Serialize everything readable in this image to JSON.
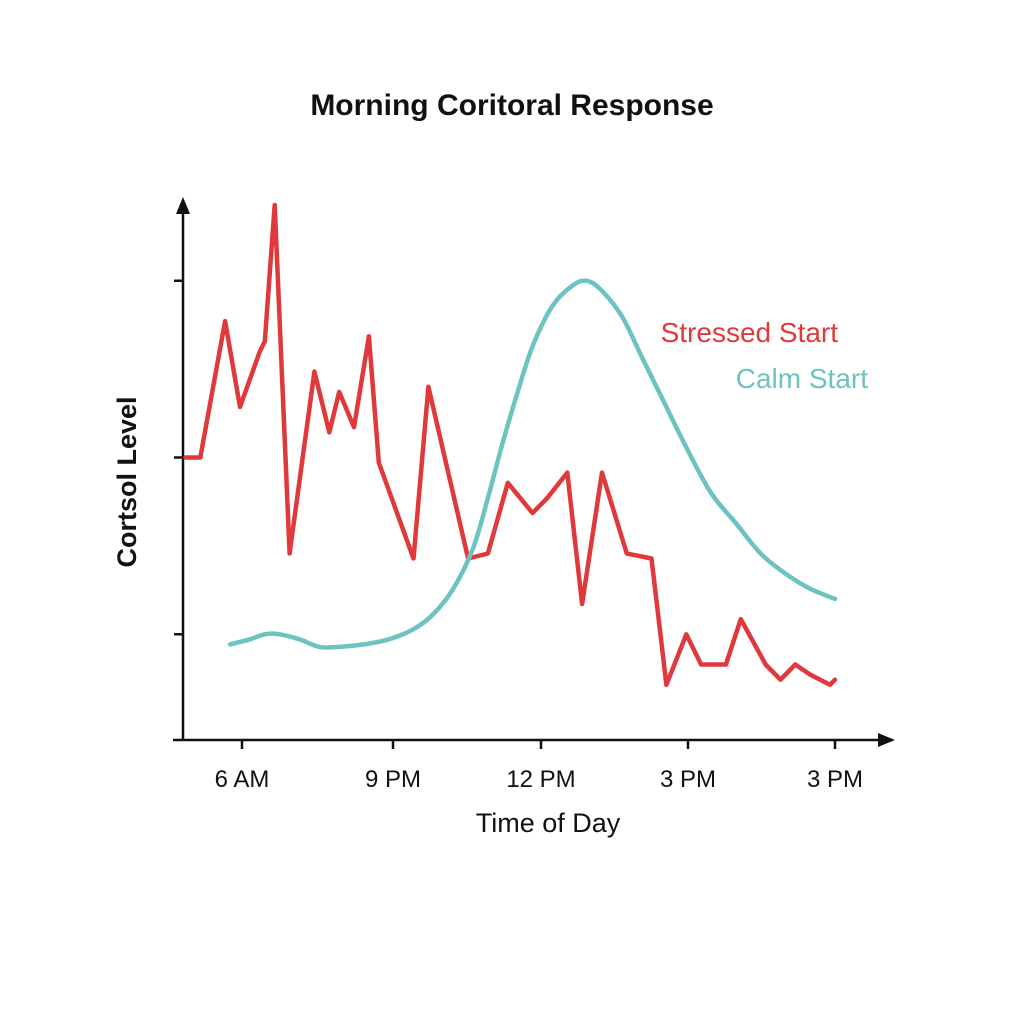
{
  "chart_data": {
    "type": "line",
    "title": "Morning Coritoral Response",
    "xlabel": "Time of Day",
    "ylabel": "Cortsol Level",
    "x_tick_labels": [
      "6 AM",
      "9 PM",
      "12 PM",
      "3 PM",
      "3 PM"
    ],
    "xlim": [
      5,
      18
    ],
    "ylim": [
      0,
      100
    ],
    "y_tick_values": [
      15,
      50,
      85
    ],
    "grid": false,
    "legend_placement": "top-right (inline labels)",
    "series": [
      {
        "name": "Stressed Start",
        "color": "#e0393b",
        "x": [
          4.9,
          5.2,
          5.7,
          6.0,
          6.4,
          6.5,
          6.7,
          7.0,
          7.5,
          7.8,
          8.0,
          8.3,
          8.6,
          8.8,
          9.5,
          9.8,
          10.6,
          11.0,
          11.4,
          11.9,
          12.2,
          12.6,
          12.9,
          13.3,
          13.8,
          14.3,
          14.6,
          15.0,
          15.3,
          15.8,
          16.1,
          16.6,
          16.9,
          17.2,
          17.5,
          17.9,
          18.0
        ],
        "y": [
          50,
          50,
          77,
          60,
          71,
          73,
          100,
          31,
          67,
          55,
          63,
          56,
          74,
          49,
          30,
          64,
          30,
          31,
          45,
          39,
          42,
          47,
          21,
          47,
          31,
          30,
          5,
          15,
          9,
          9,
          18,
          9,
          6,
          9,
          7,
          5,
          6
        ]
      },
      {
        "name": "Calm Start",
        "color": "#6cc3bf",
        "x": [
          5.8,
          6.2,
          6.5,
          6.8,
          7.2,
          7.6,
          8.0,
          8.5,
          9.0,
          9.5,
          9.9,
          10.3,
          10.7,
          11.0,
          11.3,
          11.6,
          11.9,
          12.3,
          12.7,
          13.0,
          13.3,
          13.7,
          14.1,
          14.5,
          15.0,
          15.5,
          16.0,
          16.5,
          17.0,
          17.5,
          18.0
        ],
        "y": [
          13,
          14,
          15,
          15,
          14,
          12.5,
          12.5,
          13,
          14,
          16,
          19,
          24,
          32,
          42,
          53,
          63,
          72,
          80,
          84,
          85,
          83,
          78,
          70,
          62,
          52,
          43,
          37,
          31,
          27,
          24,
          22
        ]
      }
    ]
  }
}
